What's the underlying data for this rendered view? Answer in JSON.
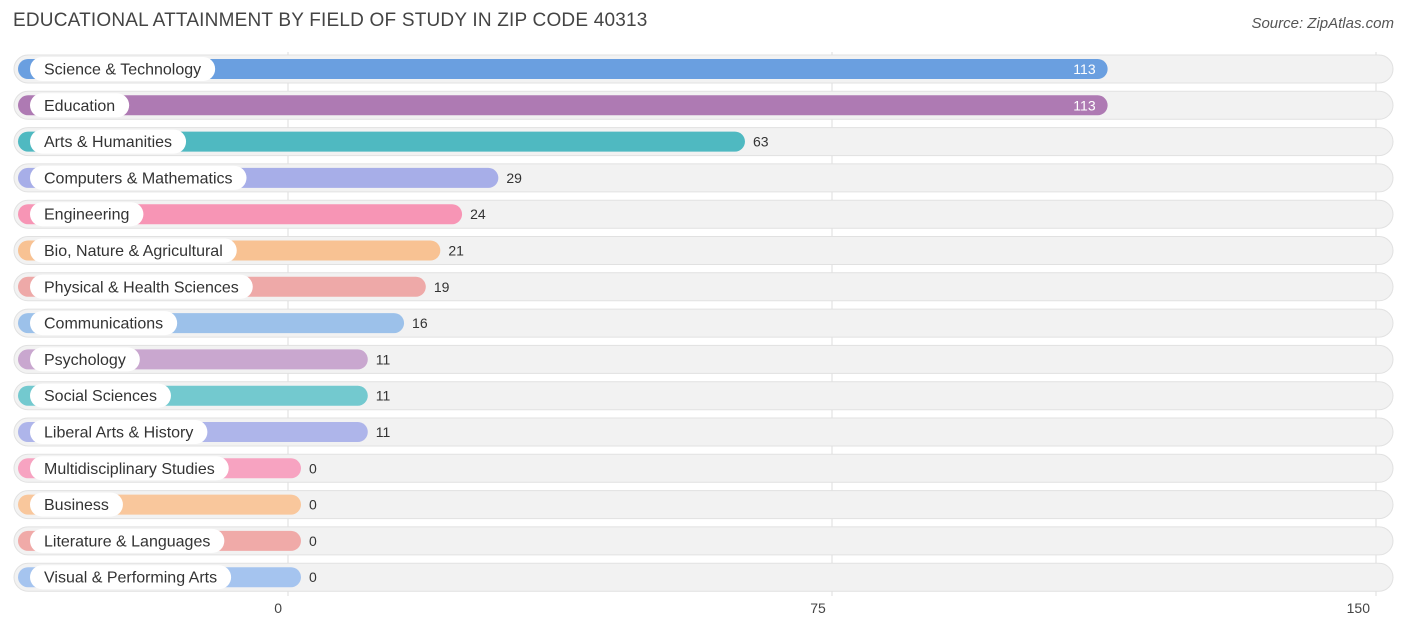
{
  "header": {
    "title": "EDUCATIONAL ATTAINMENT BY FIELD OF STUDY IN ZIP CODE 40313",
    "source": "Source: ZipAtlas.com"
  },
  "chart_data": {
    "type": "bar",
    "orientation": "horizontal",
    "title": "EDUCATIONAL ATTAINMENT BY FIELD OF STUDY IN ZIP CODE 40313",
    "categories": [
      "Science & Technology",
      "Education",
      "Arts & Humanities",
      "Computers & Mathematics",
      "Engineering",
      "Bio, Nature & Agricultural",
      "Physical & Health Sciences",
      "Communications",
      "Psychology",
      "Social Sciences",
      "Liberal Arts & History",
      "Multidisciplinary Studies",
      "Business",
      "Literature & Languages",
      "Visual & Performing Arts"
    ],
    "values": [
      113,
      113,
      63,
      29,
      24,
      21,
      19,
      16,
      11,
      11,
      11,
      0,
      0,
      0,
      0
    ],
    "colors": [
      "#6a9fe0",
      "#ae7ab3",
      "#4fb9c1",
      "#a7aee8",
      "#f795b5",
      "#f8c293",
      "#eea9a8",
      "#9cc1ea",
      "#c9a7cf",
      "#73c9cf",
      "#aeb5ea",
      "#f7a3c1",
      "#f9c79c",
      "#f0aaa8",
      "#a5c4ef"
    ],
    "xlim": [
      0,
      150
    ],
    "xticks": [
      0,
      75,
      150
    ],
    "xtick_labels": [
      "0",
      "75",
      "150"
    ],
    "grid": true
  }
}
